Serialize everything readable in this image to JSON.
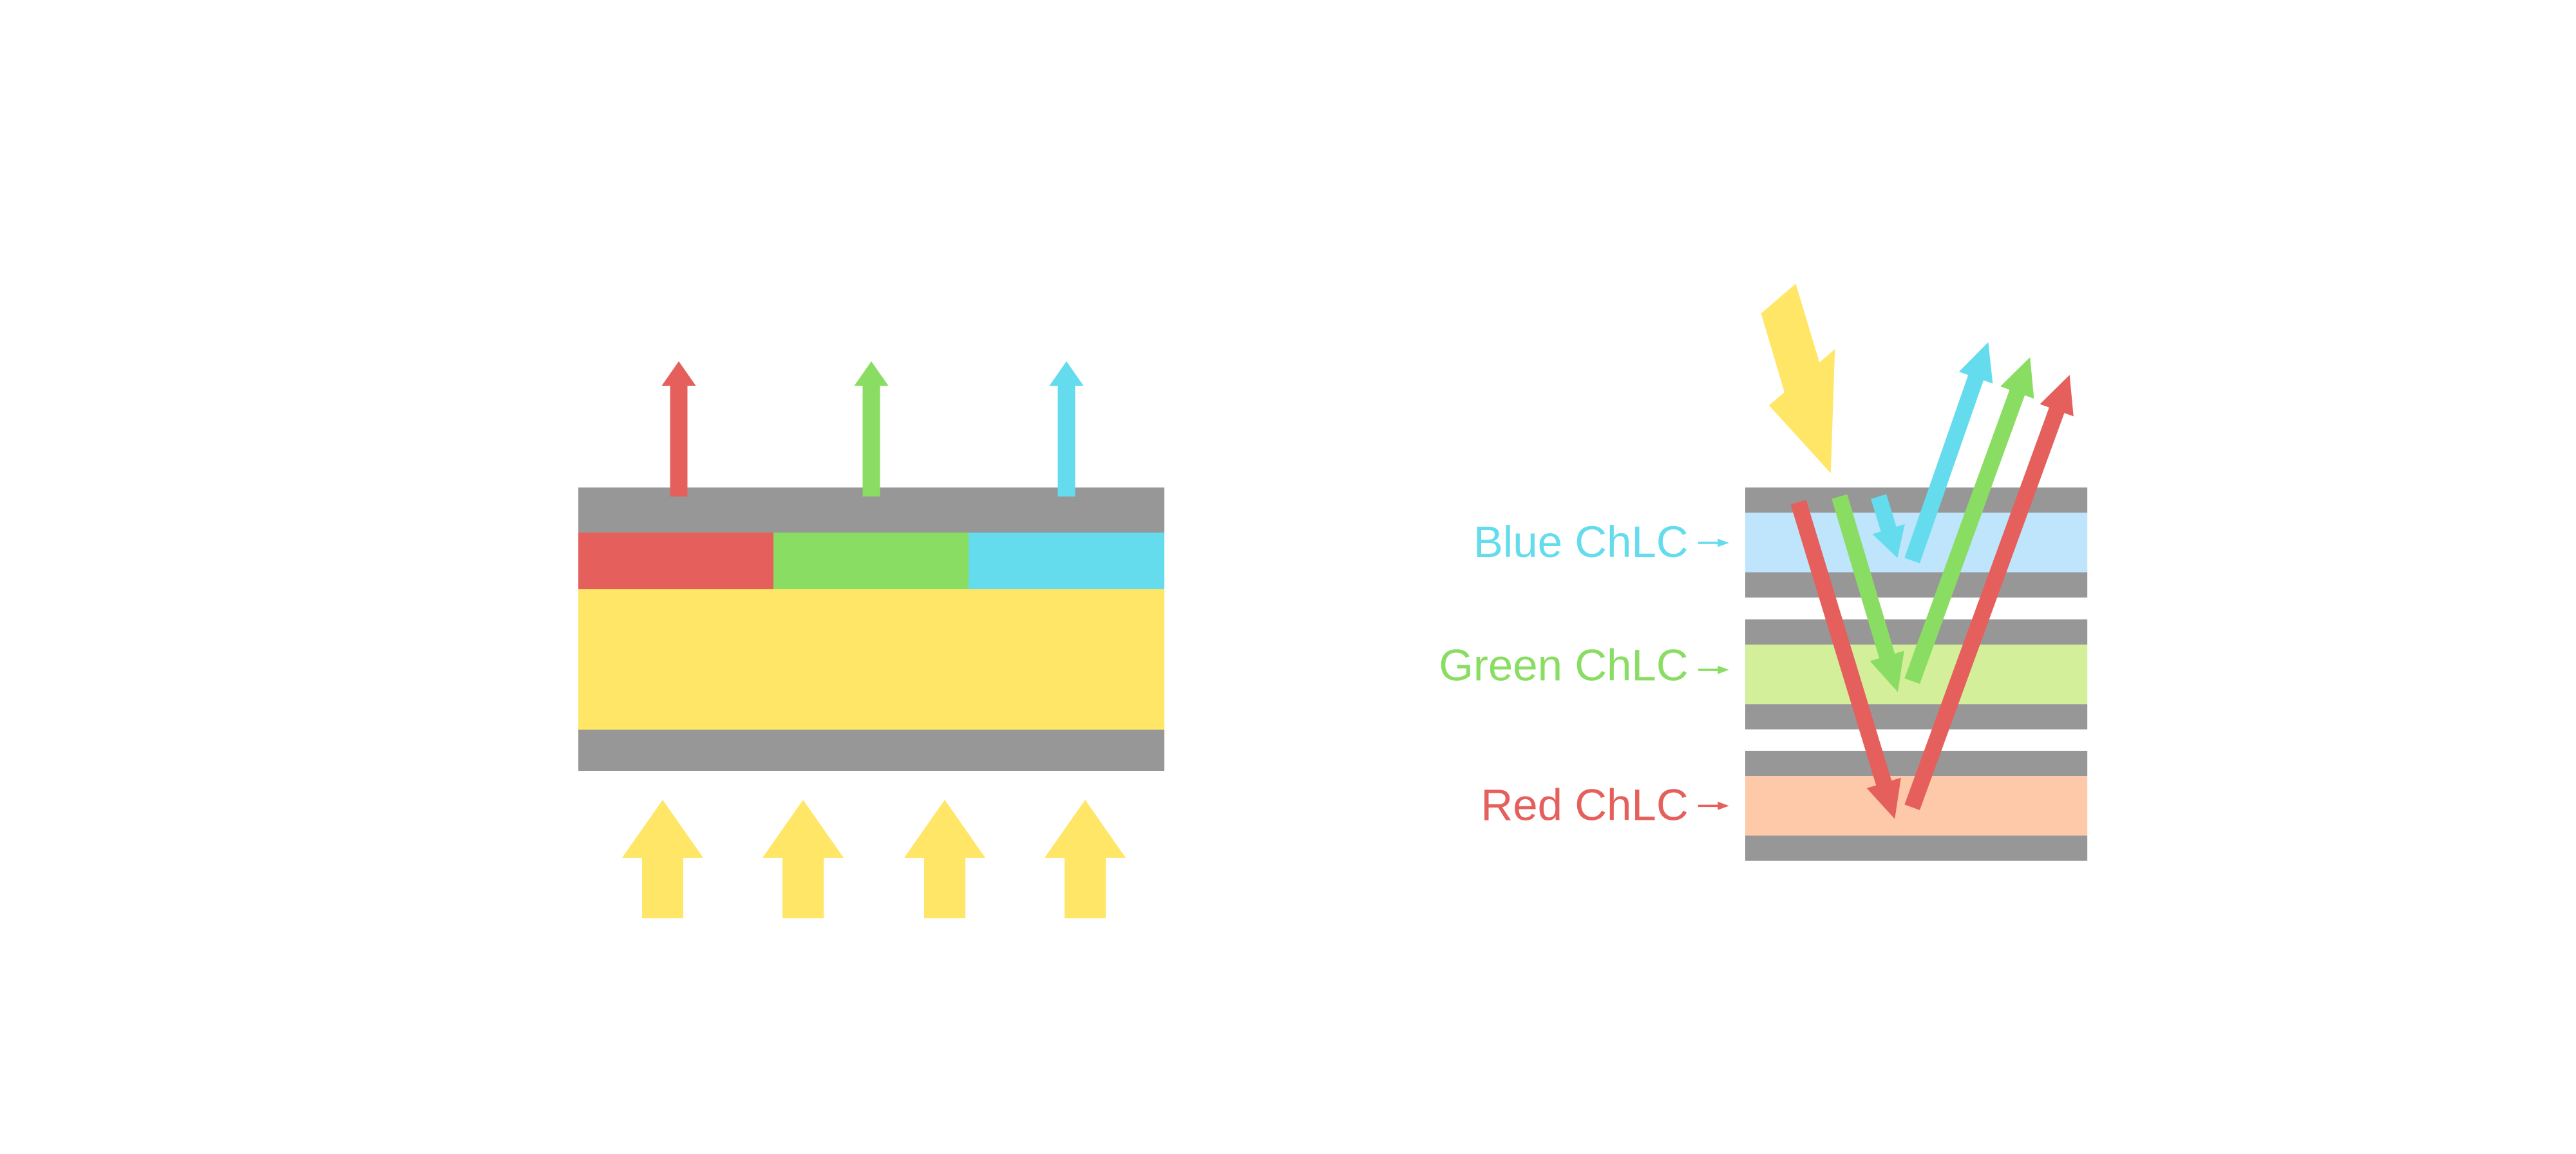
{
  "colors": {
    "red": "#E5605C",
    "green": "#8ADD63",
    "blue": "#64DCEE",
    "yellow": "#FFE666",
    "gray": "#979797",
    "light_blue": "#BEE5FC",
    "light_green": "#D3EF9A",
    "peach": "#FDC9A9"
  },
  "right_diagram": {
    "labels": {
      "blue": "Blue ChLC",
      "green": "Green ChLC",
      "red": "Red ChLC"
    }
  }
}
